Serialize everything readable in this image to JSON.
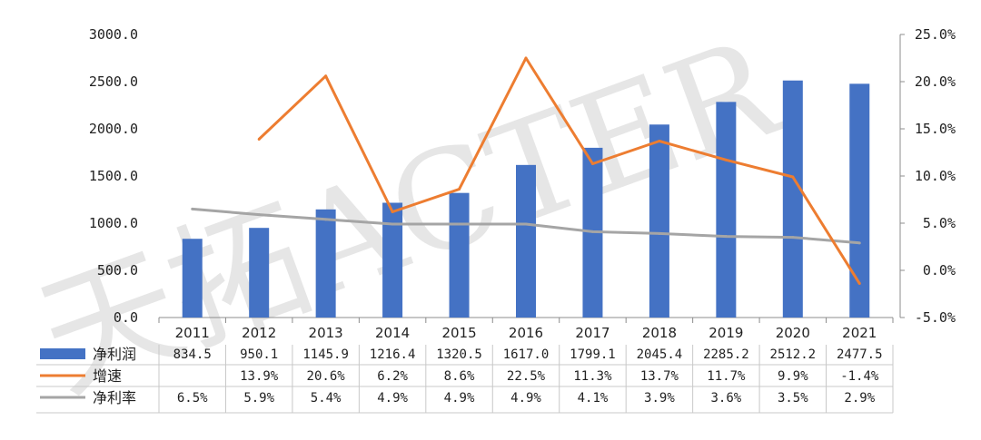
{
  "watermark": "天拓ACTER",
  "colors": {
    "bar": "#4472C4",
    "growth": "#ED7D31",
    "margin": "#A5A5A5",
    "axis": "#8C8C8C",
    "grid": "#C8C8C8"
  },
  "chart_data": {
    "type": "bar",
    "title": "",
    "categories": [
      "2011",
      "2012",
      "2013",
      "2014",
      "2015",
      "2016",
      "2017",
      "2018",
      "2019",
      "2020",
      "2021"
    ],
    "ylim": [
      0,
      3000
    ],
    "y2lim": [
      -5,
      25
    ],
    "y_ticks": [
      "0.0",
      "500.0",
      "1000.0",
      "1500.0",
      "2000.0",
      "2500.0",
      "3000.0"
    ],
    "y2_ticks": [
      "-5.0%",
      "0.0%",
      "5.0%",
      "10.0%",
      "15.0%",
      "20.0%",
      "25.0%"
    ],
    "series": [
      {
        "name": "净利润",
        "type": "bar",
        "axis": "left",
        "values": [
          834.5,
          950.1,
          1145.9,
          1216.4,
          1320.5,
          1617.0,
          1799.1,
          2045.4,
          2285.2,
          2512.2,
          2477.5
        ],
        "labels": [
          "834.5",
          "950.1",
          "1145.9",
          "1216.4",
          "1320.5",
          "1617.0",
          "1799.1",
          "2045.4",
          "2285.2",
          "2512.2",
          "2477.5"
        ]
      },
      {
        "name": "增速",
        "type": "line",
        "axis": "right",
        "values": [
          null,
          13.9,
          20.6,
          6.2,
          8.6,
          22.5,
          11.3,
          13.7,
          11.7,
          9.9,
          -1.4
        ],
        "labels": [
          "",
          "13.9%",
          "20.6%",
          "6.2%",
          "8.6%",
          "22.5%",
          "11.3%",
          "13.7%",
          "11.7%",
          "9.9%",
          "-1.4%"
        ]
      },
      {
        "name": "净利率",
        "type": "line",
        "axis": "right",
        "values": [
          6.5,
          5.9,
          5.4,
          4.9,
          4.9,
          4.9,
          4.1,
          3.9,
          3.6,
          3.5,
          2.9
        ],
        "labels": [
          "6.5%",
          "5.9%",
          "5.4%",
          "4.9%",
          "4.9%",
          "4.9%",
          "4.1%",
          "3.9%",
          "3.6%",
          "3.5%",
          "2.9%"
        ]
      }
    ]
  }
}
